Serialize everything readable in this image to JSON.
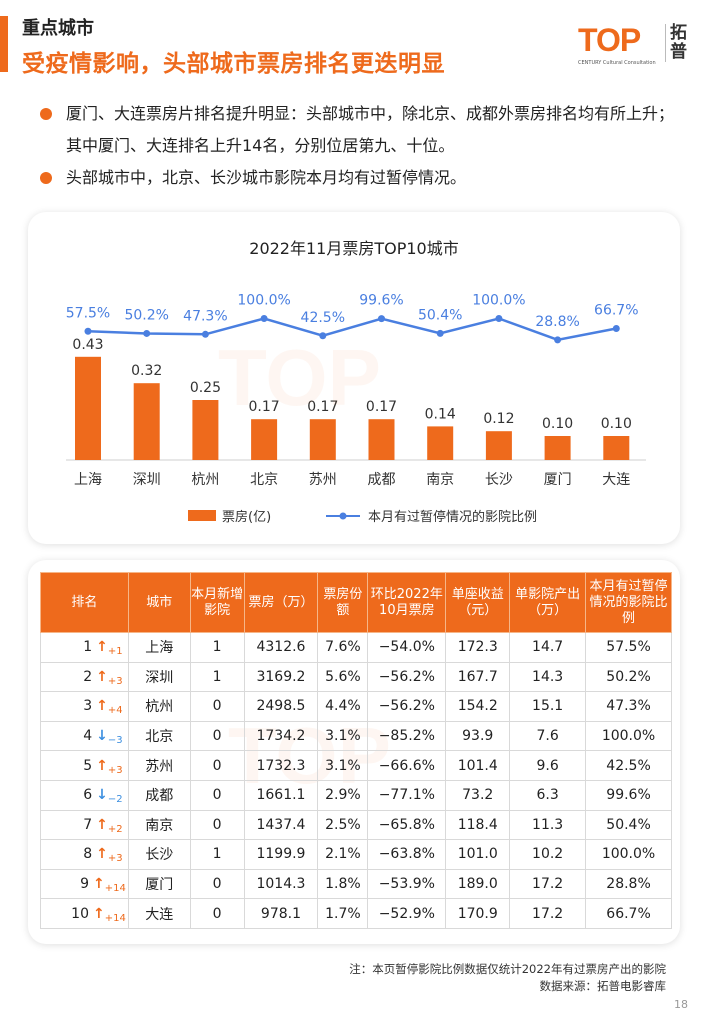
{
  "header": {
    "section": "重点城市",
    "headline": "受疫情影响，头部城市票房排名更迭明显"
  },
  "logo": {
    "top": "TOP",
    "sub": "CENTURY Cultural Consultation",
    "cn": "拓普"
  },
  "bullets": [
    "厦门、大连票房片排名提升明显：头部城市中，除北京、成都外票房排名均有所上升；其中厦门、大连排名上升14名，分别位居第九、十位。",
    "头部城市中，北京、长沙城市影院本月均有过暂停情况。"
  ],
  "colors": {
    "accent": "#ee6a1c",
    "line": "#4a7fe0",
    "down": "#3d8fe0"
  },
  "chart_data": {
    "type": "bar",
    "title": "2022年11月票房TOP10城市",
    "categories": [
      "上海",
      "深圳",
      "杭州",
      "北京",
      "苏州",
      "成都",
      "南京",
      "长沙",
      "厦门",
      "大连"
    ],
    "series": [
      {
        "name": "票房(亿)",
        "type": "bar",
        "values": [
          0.43,
          0.32,
          0.25,
          0.17,
          0.17,
          0.17,
          0.14,
          0.12,
          0.1,
          0.1
        ],
        "labels": [
          "0.43",
          "0.32",
          "0.25",
          "0.17",
          "0.17",
          "0.17",
          "0.14",
          "0.12",
          "0.10",
          "0.10"
        ]
      },
      {
        "name": "本月有过暂停情况的影院比例",
        "type": "line",
        "values": [
          57.5,
          50.2,
          47.3,
          100.0,
          42.5,
          99.6,
          50.4,
          100.0,
          28.8,
          66.7
        ],
        "labels": [
          "57.5%",
          "50.2%",
          "47.3%",
          "100.0%",
          "42.5%",
          "99.6%",
          "50.4%",
          "100.0%",
          "28.8%",
          "66.7%"
        ]
      }
    ],
    "legend_position": "bottom"
  },
  "table": {
    "headers": [
      "排名",
      "城市",
      "本月新增影院",
      "票房（万）",
      "票房份额",
      "环比2022年10月票房",
      "单座收益（元）",
      "单影院产出（万）",
      "本月有过暂停情况的影院比例"
    ],
    "rows": [
      {
        "rank": "1",
        "dir": "up",
        "change": "+1",
        "city": "上海",
        "new": "1",
        "box": "4312.6",
        "share": "7.6%",
        "mom": "−54.0%",
        "seat": "172.3",
        "output": "14.7",
        "pause": "57.5%"
      },
      {
        "rank": "2",
        "dir": "up",
        "change": "+3",
        "city": "深圳",
        "new": "1",
        "box": "3169.2",
        "share": "5.6%",
        "mom": "−56.2%",
        "seat": "167.7",
        "output": "14.3",
        "pause": "50.2%"
      },
      {
        "rank": "3",
        "dir": "up",
        "change": "+4",
        "city": "杭州",
        "new": "0",
        "box": "2498.5",
        "share": "4.4%",
        "mom": "−56.2%",
        "seat": "154.2",
        "output": "15.1",
        "pause": "47.3%"
      },
      {
        "rank": "4",
        "dir": "down",
        "change": "−3",
        "city": "北京",
        "new": "0",
        "box": "1734.2",
        "share": "3.1%",
        "mom": "−85.2%",
        "seat": "93.9",
        "output": "7.6",
        "pause": "100.0%"
      },
      {
        "rank": "5",
        "dir": "up",
        "change": "+3",
        "city": "苏州",
        "new": "0",
        "box": "1732.3",
        "share": "3.1%",
        "mom": "−66.6%",
        "seat": "101.4",
        "output": "9.6",
        "pause": "42.5%"
      },
      {
        "rank": "6",
        "dir": "down",
        "change": "−2",
        "city": "成都",
        "new": "0",
        "box": "1661.1",
        "share": "2.9%",
        "mom": "−77.1%",
        "seat": "73.2",
        "output": "6.3",
        "pause": "99.6%"
      },
      {
        "rank": "7",
        "dir": "up",
        "change": "+2",
        "city": "南京",
        "new": "0",
        "box": "1437.4",
        "share": "2.5%",
        "mom": "−65.8%",
        "seat": "118.4",
        "output": "11.3",
        "pause": "50.4%"
      },
      {
        "rank": "8",
        "dir": "up",
        "change": "+3",
        "city": "长沙",
        "new": "1",
        "box": "1199.9",
        "share": "2.1%",
        "mom": "−63.8%",
        "seat": "101.0",
        "output": "10.2",
        "pause": "100.0%"
      },
      {
        "rank": "9",
        "dir": "up",
        "change": "+14",
        "city": "厦门",
        "new": "0",
        "box": "1014.3",
        "share": "1.8%",
        "mom": "−53.9%",
        "seat": "189.0",
        "output": "17.2",
        "pause": "28.8%"
      },
      {
        "rank": "10",
        "dir": "up",
        "change": "+14",
        "city": "大连",
        "new": "0",
        "box": "978.1",
        "share": "1.7%",
        "mom": "−52.9%",
        "seat": "170.9",
        "output": "17.2",
        "pause": "66.7%"
      }
    ]
  },
  "footer": {
    "note": "注：本页暂停影院比例数据仅统计2022年有过票房产出的影院",
    "source": "数据来源：拓普电影睿库",
    "page": "18"
  }
}
